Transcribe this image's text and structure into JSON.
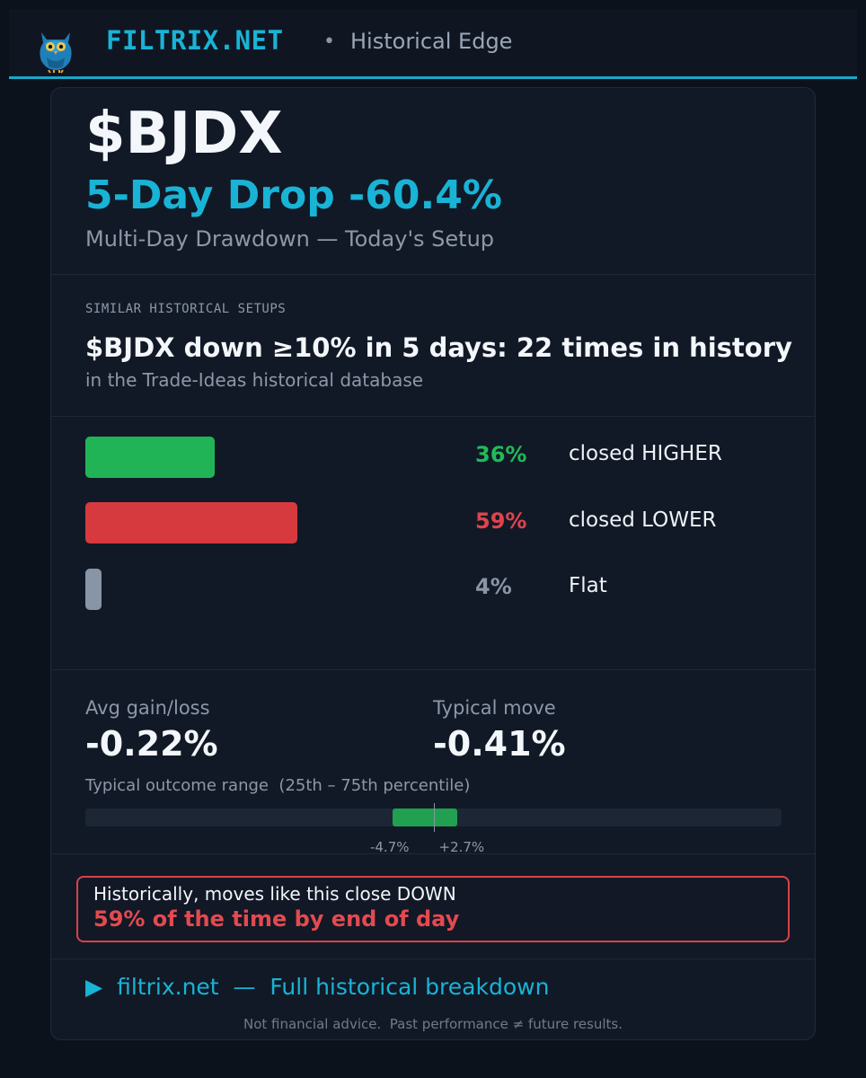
{
  "header": {
    "brand": "FILTRIX.NET",
    "separator": "•",
    "subtitle": "Historical Edge"
  },
  "hero": {
    "ticker": "$BJDX",
    "headline": "5-Day Drop -60.4%",
    "subhead": "Multi-Day Drawdown — Today's Setup"
  },
  "similar": {
    "section_label": "SIMILAR HISTORICAL SETUPS",
    "summary": "$BJDX down ≥10% in 5 days: 22 times in history",
    "source": "in the Trade-Ideas historical database"
  },
  "outcomes": [
    {
      "pct": "36%",
      "label": "closed HIGHER",
      "value": 0.36,
      "color": "#20b457"
    },
    {
      "pct": "59%",
      "label": "closed LOWER",
      "value": 0.59,
      "color": "#d63a3f"
    },
    {
      "pct": "4%",
      "label": "Flat",
      "value": 0.04,
      "color": "#8895a6"
    }
  ],
  "stats": {
    "avg_label": "Avg gain/loss",
    "avg_value": "-0.22%",
    "typical_label": "Typical move",
    "typical_value": "-0.41%"
  },
  "range": {
    "label": "Typical outcome range  (25th – 75th percentile)",
    "low_label": "-4.7%",
    "high_label": "+2.7%",
    "low": -4.7,
    "high": 2.7
  },
  "callout": {
    "line1": "Historically, moves like this close DOWN",
    "line2": "59% of the time by end of day"
  },
  "footer": {
    "cta": "▶  filtrix.net  —  Full historical breakdown",
    "disclaimer": "Not financial advice.  Past performance ≠ future results."
  },
  "colors": {
    "accent": "#19b3d6",
    "positive": "#22b95a",
    "negative": "#e0434a",
    "neutral": "#8895a6"
  }
}
